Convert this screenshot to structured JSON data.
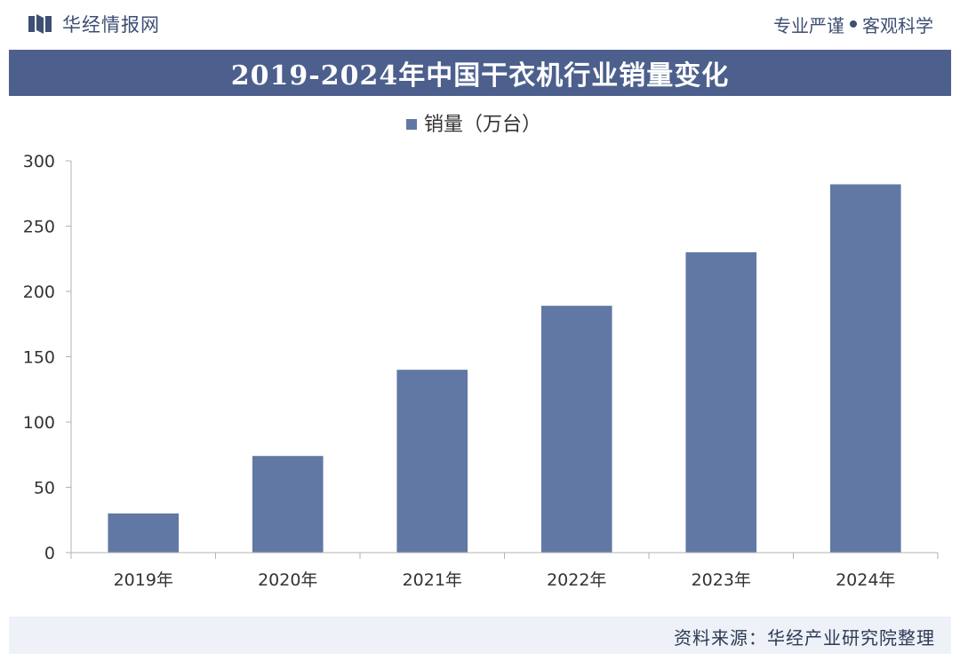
{
  "header": {
    "brand": "华经情报网",
    "slogan_left": "专业严谨",
    "slogan_right": "客观科学"
  },
  "title": "2019-2024年中国干衣机行业销量变化",
  "source": "资料来源：华经产业研究院整理",
  "colors": {
    "bar": "#6278a4",
    "title_band": "#4c5f8d",
    "axis": "#b3b3b3",
    "text": "#333333"
  },
  "chart_data": {
    "type": "bar",
    "categories": [
      "2019年",
      "2020年",
      "2021年",
      "2022年",
      "2023年",
      "2024年"
    ],
    "series": [
      {
        "name": "销量（万台）",
        "values": [
          30,
          74,
          140,
          189,
          230,
          282
        ]
      }
    ],
    "yticks": [
      0,
      50,
      100,
      150,
      200,
      250,
      300
    ],
    "ylim": [
      0,
      300
    ],
    "legend_position": "top-center",
    "grid": false
  }
}
